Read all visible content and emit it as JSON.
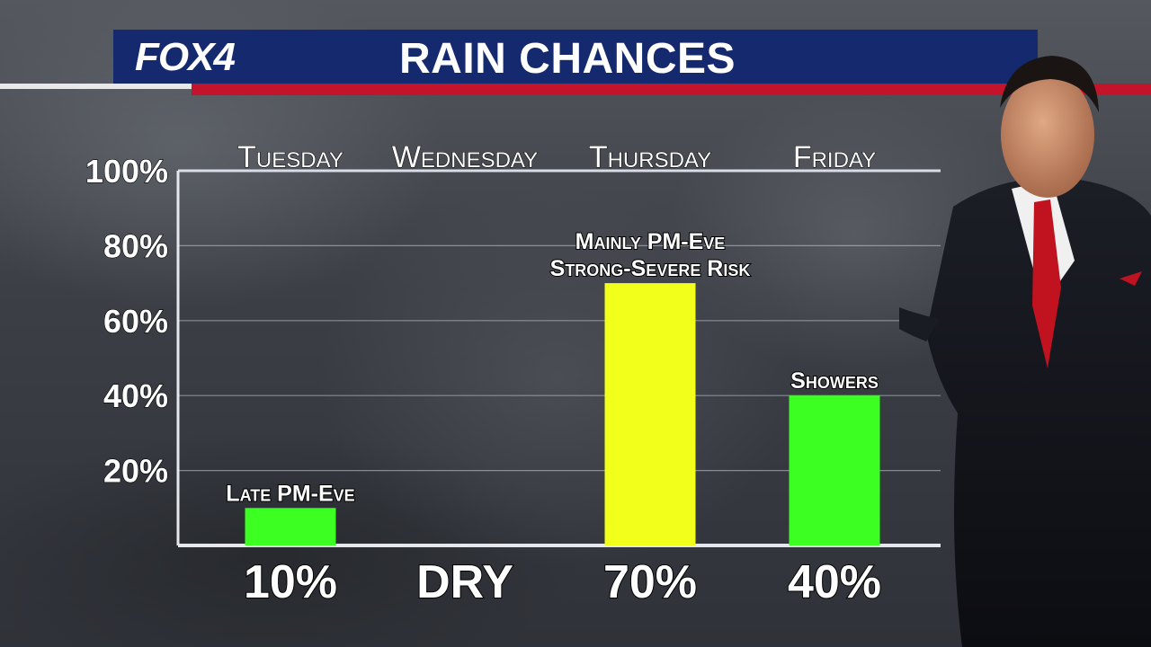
{
  "header": {
    "logo_text": "FOX4",
    "title": "RAIN CHANCES"
  },
  "colors": {
    "header_blue": "#14296e",
    "header_red": "#c4142b",
    "bar_green": "#3cff22",
    "bar_yellow": "#f2ff1a"
  },
  "chart_data": {
    "type": "bar",
    "categories": [
      "Tuesday",
      "Wednesday",
      "Thursday",
      "Friday"
    ],
    "values": [
      10,
      0,
      70,
      40
    ],
    "bar_colors": [
      "#3cff22",
      "#3cff22",
      "#f2ff1a",
      "#3cff22"
    ],
    "bar_annotations": [
      [
        "Late PM-Eve"
      ],
      [],
      [
        "Mainly PM-Eve",
        "Strong-Severe Risk"
      ],
      [
        "Showers"
      ]
    ],
    "value_labels": [
      "10%",
      "DRY",
      "70%",
      "40%"
    ],
    "yticks": [
      "20%",
      "40%",
      "60%",
      "80%",
      "100%"
    ],
    "ytick_values": [
      20,
      40,
      60,
      80,
      100
    ],
    "ylim": [
      0,
      100
    ],
    "grid": true
  }
}
